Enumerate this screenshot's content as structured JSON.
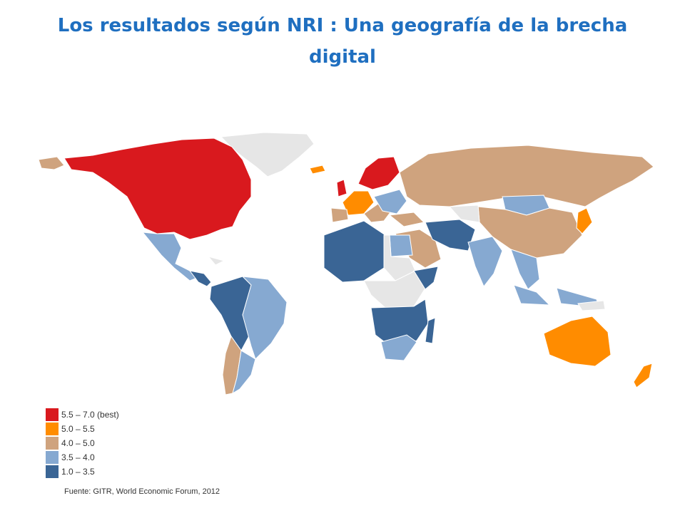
{
  "title": "Los resultados según NRI : Una geografía de la brecha digital",
  "legend": [
    {
      "label": "5.5 – 7.0 (best)",
      "color": "#d9191e"
    },
    {
      "label": "5.0 – 5.5",
      "color": "#ff8c00"
    },
    {
      "label": "4.0 – 5.0",
      "color": "#cfa37e"
    },
    {
      "label": "3.5 – 4.0",
      "color": "#86a9d1"
    },
    {
      "label": "1.0 – 3.5",
      "color": "#3a6595"
    }
  ],
  "no_data_color": "#e6e6e6",
  "source": "Fuente: GITR, World Economic Forum, 2012"
}
